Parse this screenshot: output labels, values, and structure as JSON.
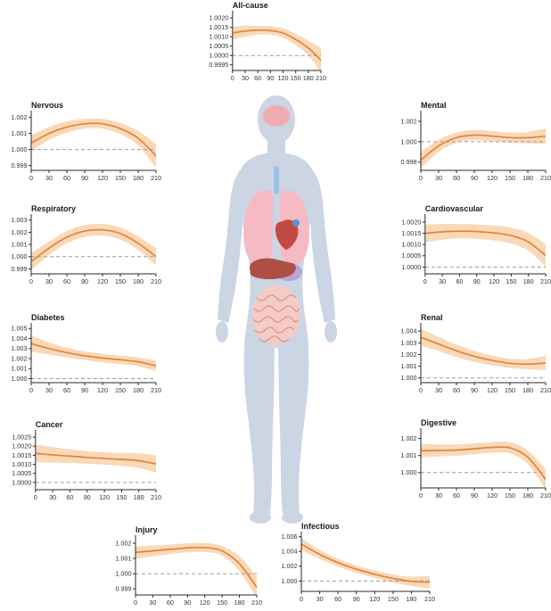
{
  "figure": {
    "colors": {
      "line": "#E2833E",
      "band": "#F8D0A5",
      "ref": "#9B9B9B",
      "axis": "#2A2A2A",
      "text": "#333333",
      "body": "#CBD5E4",
      "brain": "#EFADB2",
      "trachea": "#9CC2E5",
      "lungs": "#F6BAC2",
      "heart": "#C14B43",
      "vessel": "#5B8FD4",
      "liver": "#AE4F46",
      "stomach": "#B7A6D6",
      "intestines": "#F4CCC5",
      "intestine_line": "#D99E95"
    },
    "body_illustration": {
      "organs": [
        "brain",
        "trachea",
        "lungs",
        "heart",
        "liver",
        "stomach",
        "intestines"
      ]
    }
  },
  "chart_data": [
    {
      "id": "all_cause",
      "title": "All-cause",
      "type": "line",
      "x": [
        0,
        30,
        60,
        90,
        120,
        150,
        180,
        210
      ],
      "xticks": [
        0,
        30,
        60,
        90,
        120,
        150,
        180,
        210
      ],
      "mean": [
        1.0012,
        1.0013,
        1.00135,
        1.00133,
        1.0012,
        1.00085,
        1.0004,
        0.99975
      ],
      "upper": [
        1.00155,
        1.0016,
        1.00158,
        1.00155,
        1.00145,
        1.00115,
        1.0008,
        1.0004
      ],
      "lower": [
        1.00085,
        1.001,
        1.00112,
        1.00111,
        1.00095,
        1.00055,
        1.0,
        0.9991
      ],
      "yticks": [
        0.9995,
        1.0,
        1.0005,
        1.001,
        1.0015,
        1.002
      ],
      "ytick_labels": [
        "0.9995",
        "1.0000",
        "1.0005",
        "1.0010",
        "1.0015",
        "1.0020"
      ],
      "ylim": [
        0.9992,
        1.0022
      ],
      "ref": 1.0,
      "xlabel": "",
      "ylabel": ""
    },
    {
      "id": "nervous",
      "title": "Nervous",
      "type": "line",
      "x": [
        0,
        30,
        60,
        90,
        120,
        150,
        180,
        210
      ],
      "xticks": [
        0,
        30,
        60,
        90,
        120,
        150,
        180,
        210
      ],
      "mean": [
        1.0004,
        1.001,
        1.0014,
        1.0016,
        1.0016,
        1.0013,
        1.0007,
        0.9996
      ],
      "upper": [
        1.0009,
        1.0014,
        1.00175,
        1.0019,
        1.0019,
        1.00165,
        1.00115,
        1.00035
      ],
      "lower": [
        0.9999,
        1.0006,
        1.00105,
        1.0013,
        1.0013,
        1.00095,
        1.00025,
        0.99885
      ],
      "yticks": [
        0.999,
        1.0,
        1.001,
        1.002
      ],
      "ytick_labels": [
        "0.999",
        "1.000",
        "1.001",
        "1.002"
      ],
      "ylim": [
        0.9987,
        1.0022
      ],
      "ref": 1.0,
      "xlabel": "",
      "ylabel": ""
    },
    {
      "id": "mental",
      "title": "Mental",
      "type": "line",
      "x": [
        0,
        30,
        60,
        90,
        120,
        150,
        180,
        210
      ],
      "xticks": [
        0,
        30,
        60,
        90,
        120,
        150,
        180,
        210
      ],
      "mean": [
        0.9982,
        0.9996,
        1.0004,
        1.00065,
        1.00055,
        1.0004,
        1.0004,
        1.00055
      ],
      "upper": [
        0.999,
        1.0002,
        1.0009,
        1.00115,
        1.00105,
        1.0009,
        1.00095,
        1.0013
      ],
      "lower": [
        0.9974,
        0.999,
        0.9999,
        1.00015,
        1.00005,
        0.9999,
        0.99985,
        0.9998
      ],
      "yticks": [
        0.998,
        1.0,
        1.002
      ],
      "ytick_labels": [
        "0.998",
        "1.000",
        "1.002"
      ],
      "ylim": [
        0.9972,
        1.0027
      ],
      "ref": 1.0,
      "xlabel": "",
      "ylabel": ""
    },
    {
      "id": "respiratory",
      "title": "Respiratory",
      "type": "line",
      "x": [
        0,
        30,
        60,
        90,
        120,
        150,
        180,
        210
      ],
      "xticks": [
        0,
        30,
        60,
        90,
        120,
        150,
        180,
        210
      ],
      "mean": [
        0.9996,
        1.0007,
        1.0016,
        1.0021,
        1.0022,
        1.0019,
        1.0011,
        1.0
      ],
      "upper": [
        1.0003,
        1.00125,
        1.0021,
        1.00258,
        1.00268,
        1.0024,
        1.00165,
        1.0007
      ],
      "lower": [
        0.9989,
        1.00015,
        1.0011,
        1.00162,
        1.00172,
        1.0014,
        1.00055,
        0.9993
      ],
      "yticks": [
        0.999,
        1.0,
        1.001,
        1.002,
        1.003
      ],
      "ytick_labels": [
        "0.999",
        "1.000",
        "1.001",
        "1.002",
        "1.003"
      ],
      "ylim": [
        0.9986,
        1.0032
      ],
      "ref": 1.0,
      "xlabel": "",
      "ylabel": ""
    },
    {
      "id": "cardiovascular",
      "title": "Cardiovascular",
      "type": "line",
      "x": [
        0,
        30,
        60,
        90,
        120,
        150,
        180,
        210
      ],
      "xticks": [
        0,
        30,
        60,
        90,
        120,
        150,
        180,
        210
      ],
      "mean": [
        1.0015,
        1.00157,
        1.0016,
        1.00158,
        1.00152,
        1.0014,
        1.00112,
        1.00052
      ],
      "upper": [
        1.0019,
        1.00192,
        1.00192,
        1.0019,
        1.00185,
        1.00175,
        1.00152,
        1.00102
      ],
      "lower": [
        1.0011,
        1.00122,
        1.00128,
        1.00126,
        1.00119,
        1.00105,
        1.00072,
        1.00002
      ],
      "yticks": [
        1.0,
        1.0005,
        1.001,
        1.0015,
        1.002
      ],
      "ytick_labels": [
        "1.0000",
        "1.0005",
        "1.0010",
        "1.0015",
        "1.0020"
      ],
      "ylim": [
        0.9997,
        1.0022
      ],
      "ref": 1.0,
      "xlabel": "",
      "ylabel": ""
    },
    {
      "id": "diabetes",
      "title": "Diabetes",
      "type": "line",
      "x": [
        0,
        30,
        60,
        90,
        120,
        150,
        180,
        210
      ],
      "xticks": [
        0,
        30,
        60,
        90,
        120,
        150,
        180,
        210
      ],
      "mean": [
        1.0035,
        1.003,
        1.0026,
        1.00228,
        1.00205,
        1.00188,
        1.00168,
        1.00128
      ],
      "upper": [
        1.0043,
        1.0036,
        1.0031,
        1.00272,
        1.00248,
        1.0023,
        1.00212,
        1.0018
      ],
      "lower": [
        1.0027,
        1.0024,
        1.0021,
        1.00184,
        1.00162,
        1.00146,
        1.00124,
        1.00076
      ],
      "yticks": [
        1.0,
        1.001,
        1.002,
        1.003,
        1.004,
        1.005
      ],
      "ytick_labels": [
        "1.000",
        "1.001",
        "1.002",
        "1.003",
        "1.004",
        "1.005"
      ],
      "ylim": [
        0.9996,
        1.0052
      ],
      "ref": 1.0,
      "xlabel": "",
      "ylabel": ""
    },
    {
      "id": "renal",
      "title": "Renal",
      "type": "line",
      "x": [
        0,
        30,
        60,
        90,
        120,
        150,
        180,
        210
      ],
      "xticks": [
        0,
        30,
        60,
        90,
        120,
        150,
        180,
        210
      ],
      "mean": [
        1.00348,
        1.0029,
        1.00232,
        1.00185,
        1.0015,
        1.00125,
        1.00118,
        1.00128
      ],
      "upper": [
        1.0042,
        1.0035,
        1.00285,
        1.00232,
        1.00192,
        1.00165,
        1.00162,
        1.0019
      ],
      "lower": [
        1.00276,
        1.0023,
        1.00179,
        1.00138,
        1.00108,
        1.00085,
        1.00074,
        1.00066
      ],
      "yticks": [
        1.0,
        1.001,
        1.002,
        1.003,
        1.004
      ],
      "ytick_labels": [
        "1.000",
        "1.001",
        "1.002",
        "1.003",
        "1.004"
      ],
      "ylim": [
        0.9996,
        1.0044
      ],
      "ref": 1.0,
      "xlabel": "",
      "ylabel": ""
    },
    {
      "id": "cancer",
      "title": "Cancer",
      "type": "line",
      "x": [
        0,
        30,
        60,
        90,
        120,
        150,
        180,
        210
      ],
      "xticks": [
        0,
        30,
        60,
        90,
        120,
        150,
        180,
        210
      ],
      "mean": [
        1.0016,
        1.00152,
        1.00145,
        1.00138,
        1.00132,
        1.00127,
        1.0012,
        1.00102
      ],
      "upper": [
        1.00208,
        1.00195,
        1.00183,
        1.00173,
        1.00166,
        1.00162,
        1.0016,
        1.0015
      ],
      "lower": [
        1.00112,
        1.00109,
        1.00107,
        1.00103,
        1.00098,
        1.00092,
        1.0008,
        1.00054
      ],
      "yticks": [
        1.0,
        1.0005,
        1.001,
        1.0015,
        1.002,
        1.0025
      ],
      "ytick_labels": [
        "1.0000",
        "1.0005",
        "1.0010",
        "1.0015",
        "1.0020",
        "1.0025"
      ],
      "ylim": [
        0.9996,
        1.0027
      ],
      "ref": 1.0,
      "xlabel": "",
      "ylabel": ""
    },
    {
      "id": "digestive",
      "title": "Digestive",
      "type": "line",
      "x": [
        0,
        30,
        60,
        90,
        120,
        150,
        180,
        210
      ],
      "xticks": [
        0,
        30,
        60,
        90,
        120,
        150,
        180,
        210
      ],
      "mean": [
        1.00128,
        1.0013,
        1.00132,
        1.0014,
        1.00148,
        1.00145,
        1.0009,
        0.9996
      ],
      "upper": [
        1.00168,
        1.00165,
        1.00165,
        1.00172,
        1.0018,
        1.00178,
        1.0013,
        1.0002
      ],
      "lower": [
        1.00088,
        1.00095,
        1.00099,
        1.00108,
        1.00116,
        1.00112,
        1.0005,
        0.999
      ],
      "yticks": [
        1.0,
        1.001,
        1.002
      ],
      "ytick_labels": [
        "1.000",
        "1.001",
        "1.002"
      ],
      "ylim": [
        0.9991,
        1.0024
      ],
      "ref": 1.0,
      "xlabel": "",
      "ylabel": ""
    },
    {
      "id": "injury",
      "title": "Injury",
      "type": "line",
      "x": [
        0,
        30,
        60,
        90,
        120,
        150,
        180,
        210
      ],
      "xticks": [
        0,
        30,
        60,
        90,
        120,
        150,
        180,
        210
      ],
      "mean": [
        1.0014,
        1.0015,
        1.0016,
        1.0017,
        1.00172,
        1.0015,
        1.00065,
        0.9991
      ],
      "upper": [
        1.0018,
        1.00185,
        1.00192,
        1.002,
        1.00202,
        1.00182,
        1.00115,
        0.9998
      ],
      "lower": [
        1.001,
        1.00115,
        1.00128,
        1.0014,
        1.00142,
        1.00118,
        1.00015,
        0.9984
      ],
      "yticks": [
        0.999,
        1.0,
        1.001,
        1.002
      ],
      "ytick_labels": [
        "0.999",
        "1.000",
        "1.001",
        "1.002"
      ],
      "ylim": [
        0.9986,
        1.0023
      ],
      "ref": 1.0,
      "xlabel": "",
      "ylabel": ""
    },
    {
      "id": "infectious",
      "title": "Infectious",
      "type": "line",
      "x": [
        0,
        30,
        60,
        90,
        120,
        150,
        180,
        210
      ],
      "xticks": [
        0,
        30,
        60,
        90,
        120,
        150,
        180,
        210
      ],
      "mean": [
        1.005,
        1.0036,
        1.00248,
        1.0016,
        1.00092,
        1.00035,
        0.99995,
        0.99985
      ],
      "upper": [
        1.0058,
        1.0042,
        1.003,
        1.0021,
        1.00142,
        1.0009,
        1.00058,
        1.00072
      ],
      "lower": [
        1.0042,
        1.003,
        1.00196,
        1.0011,
        1.00042,
        0.9998,
        0.99932,
        0.99898
      ],
      "yticks": [
        1.0,
        1.002,
        1.004,
        1.006
      ],
      "ytick_labels": [
        "1.000",
        "1.002",
        "1.004",
        "1.006"
      ],
      "ylim": [
        0.9986,
        1.0062
      ],
      "ref": 1.0,
      "xlabel": "",
      "ylabel": ""
    }
  ]
}
